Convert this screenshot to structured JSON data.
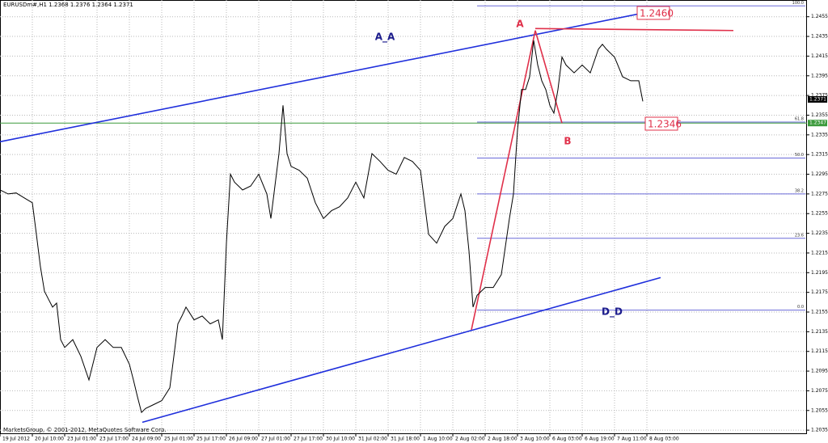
{
  "chart_data": {
    "type": "line",
    "header": "EURUSDm#,H1 1.2368 1.2376 1.2364 1.2371",
    "footer": "MarketsGroup, © 2001-2012, MetaQuotes Software Corp.",
    "xlim": [
      0,
      399.2
    ],
    "ylim": [
      1.2031,
      1.2472
    ],
    "grid": true,
    "color": "#000000",
    "x": [
      0,
      4,
      8,
      12,
      16,
      18,
      20,
      22,
      24,
      26,
      28,
      30,
      32,
      36,
      40,
      44,
      48,
      52,
      56,
      60,
      64,
      66,
      68,
      70,
      72,
      76,
      80,
      84,
      86,
      88,
      90,
      92,
      96,
      100,
      104,
      108,
      110,
      112,
      114,
      116,
      120,
      124,
      128,
      132,
      134,
      136,
      138,
      140,
      142,
      144,
      148,
      152,
      156,
      160,
      164,
      168,
      172,
      176,
      180,
      184,
      188,
      192,
      196,
      200,
      204,
      208,
      212,
      216,
      220,
      224,
      228,
      230,
      232,
      234,
      236,
      240,
      244,
      248,
      252,
      254,
      256,
      258,
      260,
      262,
      264,
      266,
      268,
      270,
      272,
      274,
      276,
      278,
      280,
      284,
      288,
      292,
      296,
      298,
      300,
      304,
      308,
      312,
      316,
      318
    ],
    "values": [
      1.2279,
      1.2275,
      1.2276,
      1.2271,
      1.2266,
      1.2234,
      1.2201,
      1.2176,
      1.2168,
      1.216,
      1.2164,
      1.2127,
      1.2119,
      1.2127,
      1.211,
      1.2086,
      1.2119,
      1.2127,
      1.2119,
      1.2119,
      1.2102,
      1.2086,
      1.2069,
      1.2053,
      1.2057,
      1.2061,
      1.2065,
      1.2078,
      1.211,
      1.2143,
      1.2151,
      1.216,
      1.2147,
      1.2151,
      1.2143,
      1.2147,
      1.2127,
      1.2225,
      1.2295,
      1.2287,
      1.2279,
      1.2283,
      1.2295,
      1.2275,
      1.225,
      1.2283,
      1.2316,
      1.2365,
      1.2316,
      1.2303,
      1.2299,
      1.2291,
      1.2266,
      1.225,
      1.2258,
      1.2262,
      1.2271,
      1.2287,
      1.2271,
      1.2316,
      1.2308,
      1.2299,
      1.2295,
      1.2312,
      1.2308,
      1.2299,
      1.2234,
      1.2225,
      1.2242,
      1.225,
      1.2275,
      1.2258,
      1.2217,
      1.216,
      1.2172,
      1.218,
      1.218,
      1.2193,
      1.225,
      1.2275,
      1.234,
      1.2381,
      1.2381,
      1.2394,
      1.2431,
      1.2406,
      1.239,
      1.2381,
      1.2365,
      1.2357,
      1.2381,
      1.2414,
      1.2406,
      1.2398,
      1.2406,
      1.2398,
      1.2422,
      1.2427,
      1.2422,
      1.2414,
      1.2394,
      1.239,
      1.239,
      1.2369
    ],
    "yticks": [
      1.2455,
      1.2435,
      1.2415,
      1.2395,
      1.2375,
      1.2355,
      1.2335,
      1.2315,
      1.2295,
      1.2275,
      1.2255,
      1.2235,
      1.2215,
      1.2195,
      1.2175,
      1.2155,
      1.2135,
      1.2115,
      1.2095,
      1.2075,
      1.2055,
      1.2035
    ],
    "xticks": [
      {
        "value": 0,
        "label": "19 Jul 2012"
      },
      {
        "value": 16,
        "label": "20 Jul 10:00"
      },
      {
        "value": 32,
        "label": "23 Jul 01:00"
      },
      {
        "value": 48,
        "label": "23 Jul 17:00"
      },
      {
        "value": 64,
        "label": "24 Jul 09:00"
      },
      {
        "value": 80,
        "label": "25 Jul 01:00"
      },
      {
        "value": 96,
        "label": "25 Jul 17:00"
      },
      {
        "value": 112,
        "label": "26 Jul 09:00"
      },
      {
        "value": 128,
        "label": "27 Jul 01:00"
      },
      {
        "value": 144,
        "label": "27 Jul 17:00"
      },
      {
        "value": 160,
        "label": "30 Jul 10:00"
      },
      {
        "value": 176,
        "label": "31 Jul 02:00"
      },
      {
        "value": 192,
        "label": "31 Jul 18:00"
      },
      {
        "value": 208,
        "label": "1 Aug 10:00"
      },
      {
        "value": 224,
        "label": "2 Aug 02:00"
      },
      {
        "value": 240,
        "label": "2 Aug 18:00"
      },
      {
        "value": 256,
        "label": "3 Aug 10:00"
      },
      {
        "value": 272,
        "label": "6 Aug 03:00"
      },
      {
        "value": 288,
        "label": "6 Aug 19:00"
      },
      {
        "value": 304,
        "label": "7 Aug 11:00"
      },
      {
        "value": 320,
        "label": "8 Aug 03:00"
      }
    ],
    "hline": {
      "value": 1.2347,
      "label": "1.2347",
      "color": "#3c9a3c"
    },
    "last_price": {
      "value": 1.2371,
      "label": "1.2371"
    },
    "trendlines": [
      {
        "color": "#1f2fdc",
        "x": [
          0,
          326
        ],
        "values": [
          1.2328,
          1.2462
        ]
      },
      {
        "color": "#1f2fdc",
        "x": [
          70.4,
          326.8
        ],
        "values": [
          1.2043,
          1.219
        ]
      },
      {
        "color": "#e0304a",
        "x": [
          233.2,
          264.8
        ],
        "values": [
          1.2137,
          1.2441
        ]
      },
      {
        "color": "#e0304a",
        "x": [
          264.8,
          278
        ],
        "values": [
          1.2441,
          1.2347
        ]
      },
      {
        "color": "#e0304a",
        "x": [
          264.8,
          362.8
        ],
        "values": [
          1.2443,
          1.2441
        ]
      }
    ],
    "fibo": {
      "color": "#6a6ad8",
      "x_start": 236,
      "high": 1.2466,
      "low": 1.2157,
      "levels": [
        {
          "value": 100,
          "label": "100.0"
        },
        {
          "value": 61.8,
          "label": "61.8"
        },
        {
          "value": 50,
          "label": "50.0"
        },
        {
          "value": 38.2,
          "label": "38.2"
        },
        {
          "value": 23.6,
          "label": "23.6"
        },
        {
          "value": 0,
          "label": "0.0"
        }
      ]
    },
    "annotations": [
      {
        "text": "A_A",
        "color": "#1b1b8c"
      },
      {
        "text": "D_D",
        "color": "#1b1b8c"
      },
      {
        "text": "A",
        "color": "#e0304a"
      },
      {
        "text": "B",
        "color": "#e0304a"
      },
      {
        "text": "1.2460",
        "color": "#e0304a",
        "boxed": true
      },
      {
        "text": "1.2346",
        "color": "#e0304a",
        "boxed": true
      }
    ]
  }
}
